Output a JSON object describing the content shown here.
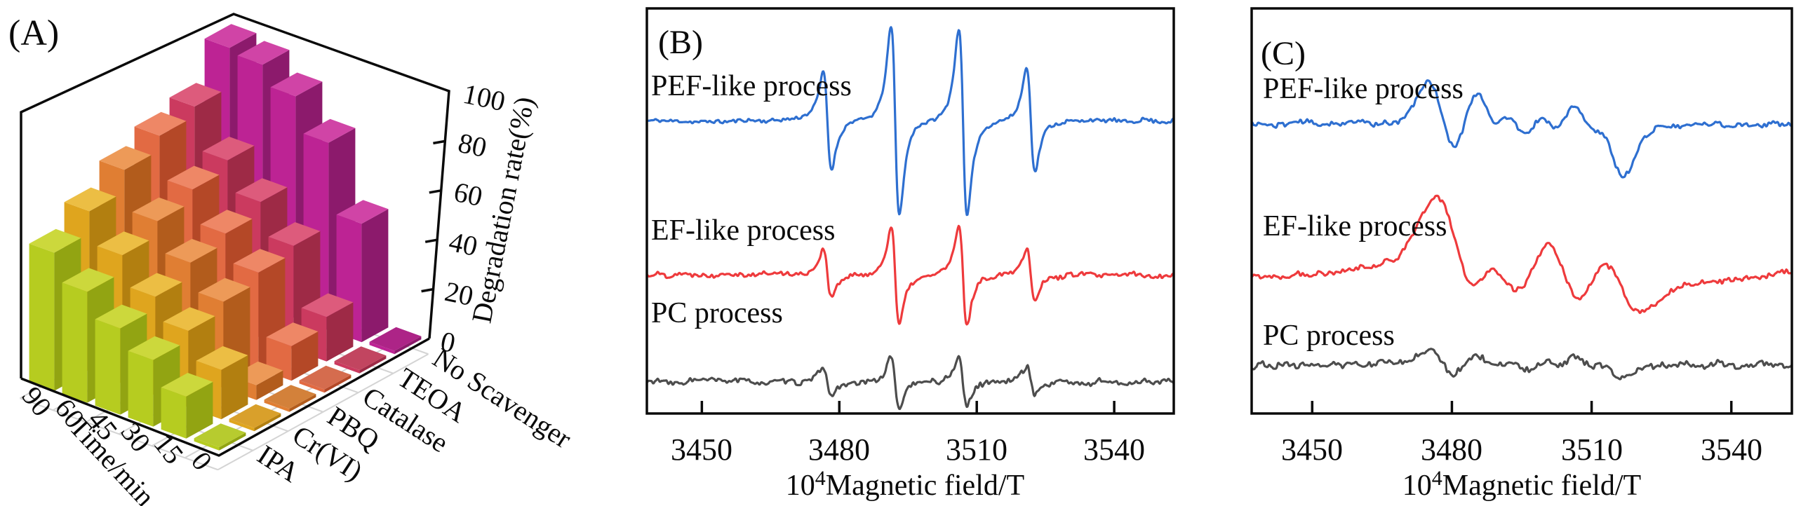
{
  "figure": {
    "background": "#ffffff",
    "description_colors": {
      "blue": "#2e6fd0",
      "red": "#ee3a3c",
      "gray": "#4d4d4d",
      "frame": "#0a0a0a"
    }
  },
  "chart_data": [
    {
      "type": "bar",
      "subtype": "bar3d",
      "panel_label": "(A)",
      "xlabel": "Time/min",
      "x_categories": [
        0,
        15,
        30,
        45,
        60,
        90
      ],
      "ylabel": "",
      "y_categories": [
        "IPA",
        "Cr(VI)",
        "PBQ",
        "Catalase",
        "TEOA",
        "No Scavenger"
      ],
      "zlabel": "Degradation rate(%)",
      "zlim": [
        0,
        100
      ],
      "z_ticks": [
        0,
        20,
        40,
        60,
        80,
        100
      ],
      "grid": true,
      "series": [
        {
          "name": "IPA",
          "values": [
            0,
            17,
            27,
            35,
            45,
            56
          ],
          "colors": {
            "top": "#ccd83c",
            "left": "#b6cc20",
            "right": "#92a412",
            "tile": "#b7cb2f"
          }
        },
        {
          "name": "Cr(VI)",
          "values": [
            0,
            20,
            31,
            40,
            52,
            65
          ],
          "colors": {
            "top": "#ecbe44",
            "left": "#dfa51e",
            "right": "#b27f10",
            "tile": "#d9a02b"
          }
        },
        {
          "name": "PBQ",
          "values": [
            0,
            6,
            35,
            46,
            58,
            74
          ],
          "colors": {
            "top": "#ed9a58",
            "left": "#e07e33",
            "right": "#b25c1c",
            "tile": "#d3813a"
          }
        },
        {
          "name": "Catalase",
          "values": [
            0,
            14,
            39,
            50,
            63,
            80
          ],
          "colors": {
            "top": "#ee8766",
            "left": "#e26a43",
            "right": "#b44827",
            "tile": "#d56c4e"
          }
        },
        {
          "name": "TEOA",
          "values": [
            0,
            18,
            42,
            55,
            67,
            84
          ],
          "colors": {
            "top": "#dd5b7c",
            "left": "#cb3a5f",
            "right": "#9e2a46",
            "tile": "#c24560"
          }
        },
        {
          "name": "No Scavenger",
          "values": [
            0,
            48,
            76,
            90,
            98,
            100
          ],
          "colors": {
            "top": "#d044a6",
            "left": "#bd2394",
            "right": "#8c1a6c",
            "tile": "#ad2487"
          }
        }
      ]
    },
    {
      "type": "line",
      "subtype": "epr-spectrum",
      "panel_label": "(B)",
      "xlabel": "10⁴Magnetic field/T",
      "xlabel_base": "10",
      "xlabel_sup": "4",
      "xlabel_rest": "Magnetic field/T",
      "x_ticks": [
        3450,
        3480,
        3510,
        3540
      ],
      "xlim": [
        3438,
        3553
      ],
      "grid": false,
      "series": [
        {
          "name": "PEF-like process",
          "color": "#2e6fd0",
          "shape": "lorentzian",
          "baseline": 172,
          "amp": 134,
          "width": 1.55,
          "noise": 2.6,
          "seed": 11,
          "peaks": [
            {
              "c": 3477.4,
              "a": 0.52
            },
            {
              "c": 3492.2,
              "a": 1.0
            },
            {
              "c": 3507.0,
              "a": 1.0
            },
            {
              "c": 3521.8,
              "a": 0.55
            }
          ]
        },
        {
          "name": "EF-like process",
          "color": "#ee3a3c",
          "shape": "lorentzian",
          "baseline": 392,
          "amp": 70,
          "width": 1.5,
          "noise": 3.2,
          "seed": 22,
          "peaks": [
            {
              "c": 3477.4,
              "a": 0.5
            },
            {
              "c": 3492.2,
              "a": 1.0
            },
            {
              "c": 3507.0,
              "a": 1.0
            },
            {
              "c": 3521.8,
              "a": 0.52
            }
          ]
        },
        {
          "name": "PC process",
          "color": "#4d4d4d",
          "shape": "lorentzian",
          "baseline": 545,
          "amp": 38,
          "width": 1.5,
          "noise": 3.6,
          "seed": 33,
          "peaks": [
            {
              "c": 3477.4,
              "a": 0.5
            },
            {
              "c": 3492.2,
              "a": 1.0
            },
            {
              "c": 3507.0,
              "a": 0.95
            },
            {
              "c": 3521.8,
              "a": 0.5
            }
          ]
        }
      ]
    },
    {
      "type": "line",
      "subtype": "epr-spectrum",
      "panel_label": "(C)",
      "xlabel": "10⁴Magnetic field/T",
      "xlabel_base": "10",
      "xlabel_sup": "4",
      "xlabel_rest": "Magnetic field/T",
      "x_ticks": [
        3450,
        3480,
        3510,
        3540
      ],
      "xlim": [
        3437,
        3553
      ],
      "grid": false,
      "series": [
        {
          "name": "PEF-like process",
          "color": "#2e6fd0",
          "shape": "gaussian",
          "baseline": 177,
          "amp": 64,
          "width": 3.1,
          "noise": 3.2,
          "seed": 44,
          "peaks": [
            {
              "c": 3478.0,
              "a": 0.85
            },
            {
              "c": 3487.5,
              "a": 0.8
            },
            {
              "c": 3494.0,
              "a": 0.85
            },
            {
              "c": 3501.0,
              "a": 0.8
            },
            {
              "c": 3508.0,
              "a": 1.0
            },
            {
              "c": 3514.0,
              "a": 0.95
            }
          ],
          "drift": [
            [
              3437,
              0
            ],
            [
              3468,
              2
            ],
            [
              3474,
              6
            ],
            [
              3520,
              -6
            ],
            [
              3528,
              -2
            ],
            [
              3553,
              0
            ]
          ]
        },
        {
          "name": "EF-like process",
          "color": "#ee3a3c",
          "shape": "gaussian",
          "baseline": 390,
          "amp": 70,
          "width": 4.4,
          "noise": 3.4,
          "seed": 55,
          "peaks": [
            {
              "c": 3481.0,
              "a": 1.2
            },
            {
              "c": 3491.0,
              "a": 0.75
            },
            {
              "c": 3504.0,
              "a": 0.8
            },
            {
              "c": 3516.0,
              "a": 0.65
            }
          ],
          "drift": [
            [
              3437,
              -5
            ],
            [
              3452,
              0
            ],
            [
              3464,
              12
            ],
            [
              3472,
              25
            ],
            [
              3480,
              25
            ],
            [
              3492,
              12
            ],
            [
              3500,
              4
            ],
            [
              3510,
              -4
            ],
            [
              3528,
              -18
            ],
            [
              3540,
              -8
            ],
            [
              3551,
              0
            ]
          ]
        },
        {
          "name": "PC process",
          "color": "#4d4d4d",
          "shape": "gaussian",
          "baseline": 520,
          "amp": 19,
          "width": 3.1,
          "noise": 4.2,
          "seed": 66,
          "peaks": [
            {
              "c": 3478.0,
              "a": 0.9
            },
            {
              "c": 3487.5,
              "a": 0.8
            },
            {
              "c": 3494.0,
              "a": 0.9
            },
            {
              "c": 3501.0,
              "a": 0.8
            },
            {
              "c": 3508.0,
              "a": 1.0
            },
            {
              "c": 3514.0,
              "a": 0.9
            }
          ],
          "drift": [
            [
              3437,
              0
            ],
            [
              3553,
              0
            ]
          ]
        }
      ]
    }
  ]
}
